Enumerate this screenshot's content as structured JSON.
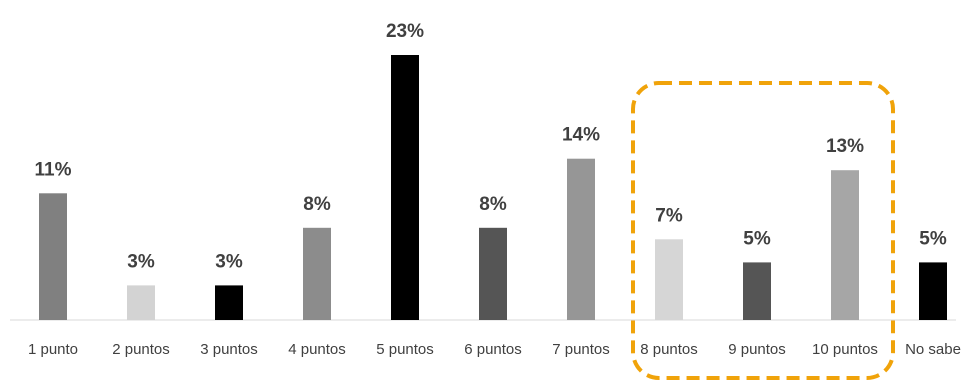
{
  "chart_data": {
    "type": "bar",
    "title": "",
    "xlabel": "",
    "ylabel": "",
    "categories": [
      "1 punto",
      "2 puntos",
      "3 puntos",
      "4 puntos",
      "5 puntos",
      "6 puntos",
      "7 puntos",
      "8 puntos",
      "9 puntos",
      "10 puntos",
      "No sabe"
    ],
    "values": [
      11,
      3,
      3,
      8,
      23,
      8,
      14,
      7,
      5,
      13,
      5
    ],
    "value_labels": [
      "11%",
      "3%",
      "3%",
      "8%",
      "23%",
      "8%",
      "14%",
      "7%",
      "5%",
      "13%",
      "5%"
    ],
    "ylim": [
      0,
      23
    ],
    "grid": false,
    "legend": false,
    "bar_colors": [
      "#808080",
      "#d3d3d3",
      "#000000",
      "#8c8c8c",
      "#000000",
      "#555555",
      "#969696",
      "#d6d6d6",
      "#555555",
      "#a6a6a6",
      "#000000"
    ],
    "highlight": {
      "categories": [
        "8 puntos",
        "9 puntos",
        "10 puntos"
      ],
      "style": "dashed-rounded-rectangle",
      "color": "#f0a30a"
    }
  }
}
